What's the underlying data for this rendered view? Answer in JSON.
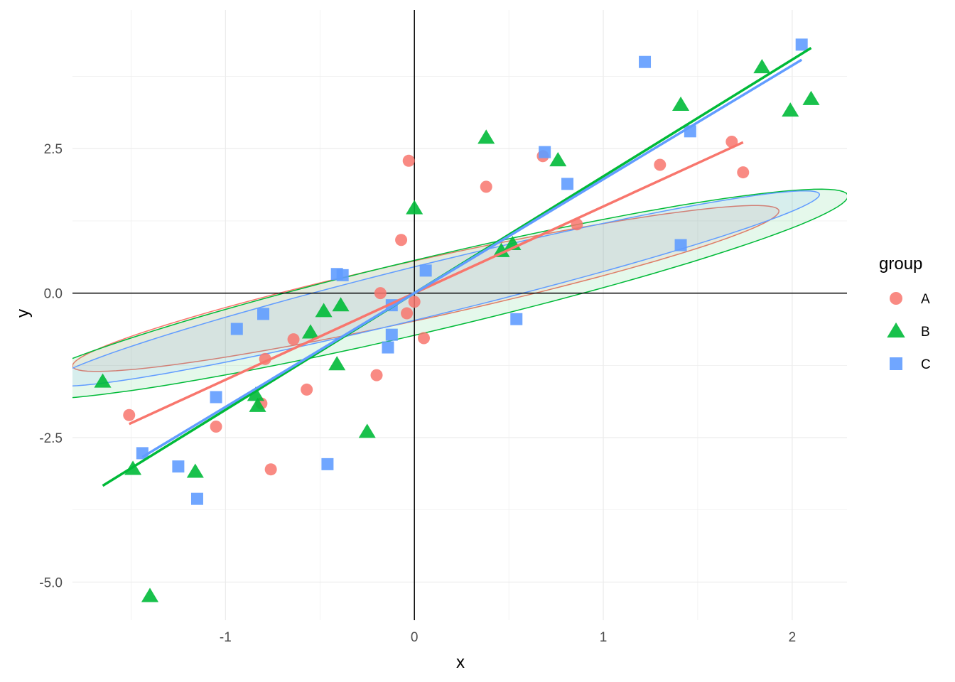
{
  "chart_data": {
    "type": "scatter",
    "title": "",
    "xlabel": "x",
    "ylabel": "y",
    "xlim": [
      -1.81,
      2.29
    ],
    "ylim": [
      -5.66,
      4.9
    ],
    "x_ticks": [
      -1,
      0,
      1,
      2
    ],
    "x_tick_labels": [
      "-1",
      "0",
      "1",
      "2"
    ],
    "y_ticks": [
      -5.0,
      -2.5,
      0.0,
      2.5
    ],
    "y_tick_labels": [
      "-5.0",
      "-2.5",
      "0.0",
      "2.5"
    ],
    "grid": true,
    "reference_lines": {
      "x": 0,
      "y": 0
    },
    "legend": {
      "title": "group",
      "position": "right"
    },
    "series": [
      {
        "name": "A",
        "color": "#F8766D",
        "shape": "circle",
        "points": [
          [
            -1.51,
            -2.11
          ],
          [
            -1.05,
            -2.31
          ],
          [
            -0.79,
            -1.14
          ],
          [
            -0.81,
            -1.91
          ],
          [
            -0.76,
            -3.05
          ],
          [
            -0.64,
            -0.8
          ],
          [
            -0.57,
            -1.67
          ],
          [
            -0.2,
            -1.42
          ],
          [
            -0.18,
            0.0
          ],
          [
            -0.07,
            0.92
          ],
          [
            -0.04,
            -0.35
          ],
          [
            -0.03,
            2.29
          ],
          [
            0.0,
            -0.15
          ],
          [
            0.05,
            -0.78
          ],
          [
            0.38,
            1.84
          ],
          [
            0.68,
            2.37
          ],
          [
            0.86,
            1.19
          ],
          [
            1.3,
            2.22
          ],
          [
            1.68,
            2.62
          ],
          [
            1.74,
            2.09
          ]
        ],
        "fit": {
          "intercept": 0.0,
          "slope": 1.5,
          "x_range": [
            -1.51,
            1.74
          ]
        },
        "ellipse": {
          "center": [
            0.06,
            0.08
          ],
          "semi_major": 2.32,
          "semi_minor": 0.42,
          "angle_deg": 37.0
        }
      },
      {
        "name": "B",
        "color": "#00BA38",
        "shape": "triangle",
        "points": [
          [
            -1.65,
            -1.53
          ],
          [
            -1.49,
            -3.04
          ],
          [
            -1.4,
            -5.24
          ],
          [
            -1.16,
            -3.09
          ],
          [
            -0.84,
            -1.76
          ],
          [
            -0.83,
            -1.95
          ],
          [
            -0.55,
            -0.68
          ],
          [
            -0.48,
            -0.31
          ],
          [
            -0.41,
            -1.23
          ],
          [
            -0.39,
            -0.21
          ],
          [
            -0.25,
            -2.4
          ],
          [
            0.0,
            1.47
          ],
          [
            0.38,
            2.69
          ],
          [
            0.46,
            0.73
          ],
          [
            0.52,
            0.85
          ],
          [
            0.76,
            2.3
          ],
          [
            1.41,
            3.26
          ],
          [
            1.84,
            3.91
          ],
          [
            1.99,
            3.16
          ],
          [
            2.1,
            3.36
          ]
        ],
        "fit": {
          "intercept": 0.0,
          "slope": 2.02,
          "x_range": [
            -1.65,
            2.1
          ]
        },
        "ellipse": {
          "center": [
            0.08,
            -0.02
          ],
          "semi_major": 2.82,
          "semi_minor": 0.51,
          "angle_deg": 39.0
        }
      },
      {
        "name": "C",
        "color": "#619CFF",
        "shape": "square",
        "points": [
          [
            -1.44,
            -2.77
          ],
          [
            -1.25,
            -3.0
          ],
          [
            -1.15,
            -3.56
          ],
          [
            -1.05,
            -1.8
          ],
          [
            -0.94,
            -0.62
          ],
          [
            -0.8,
            -0.36
          ],
          [
            -0.46,
            -2.96
          ],
          [
            -0.41,
            0.33
          ],
          [
            -0.38,
            0.31
          ],
          [
            -0.14,
            -0.94
          ],
          [
            -0.12,
            -0.21
          ],
          [
            -0.12,
            -0.72
          ],
          [
            0.06,
            0.39
          ],
          [
            0.54,
            -0.45
          ],
          [
            0.69,
            2.44
          ],
          [
            0.81,
            1.89
          ],
          [
            1.22,
            4.0
          ],
          [
            1.41,
            0.83
          ],
          [
            1.46,
            2.8
          ],
          [
            2.05,
            4.3
          ]
        ],
        "fit": {
          "intercept": 0.0,
          "slope": 1.97,
          "x_range": [
            -1.44,
            2.05
          ]
        },
        "ellipse": {
          "center": [
            0.11,
            0.08
          ],
          "semi_major": 2.62,
          "semi_minor": 0.36,
          "angle_deg": 39.5
        }
      }
    ]
  }
}
